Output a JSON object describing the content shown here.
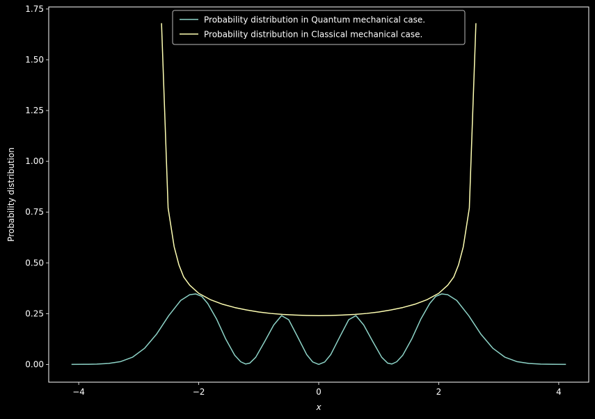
{
  "chart_data": {
    "type": "line",
    "xlabel": "x",
    "ylabel": "Probability distribution",
    "xlim": [
      -4.5,
      4.5
    ],
    "ylim": [
      -0.0875,
      1.76
    ],
    "xticks": [
      -4,
      -2,
      0,
      2,
      4
    ],
    "xtick_labels": [
      "−4",
      "−2",
      "0",
      "2",
      "4"
    ],
    "yticks": [
      0.0,
      0.25,
      0.5,
      0.75,
      1.0,
      1.25,
      1.5,
      1.75
    ],
    "ytick_labels": [
      "0.00",
      "0.25",
      "0.50",
      "0.75",
      "1.00",
      "1.25",
      "1.50",
      "1.75"
    ],
    "grid": false,
    "legend_position": "top-center",
    "series": [
      {
        "name": "Probability distribution in Quantum mechanical case.",
        "color": "#8dd3c7",
        "x": [
          -4.12,
          -3.9,
          -3.7,
          -3.5,
          -3.3,
          -3.1,
          -2.9,
          -2.7,
          -2.5,
          -2.3,
          -2.15,
          -2.05,
          -1.95,
          -1.85,
          -1.7,
          -1.55,
          -1.4,
          -1.3,
          -1.22,
          -1.15,
          -1.05,
          -0.9,
          -0.75,
          -0.62,
          -0.5,
          -0.35,
          -0.2,
          -0.1,
          0,
          0.1,
          0.2,
          0.35,
          0.5,
          0.62,
          0.75,
          0.9,
          1.05,
          1.15,
          1.22,
          1.3,
          1.4,
          1.55,
          1.7,
          1.85,
          1.95,
          2.05,
          2.15,
          2.3,
          2.5,
          2.7,
          2.9,
          3.1,
          3.3,
          3.5,
          3.7,
          3.9,
          4.12
        ],
        "y": [
          0.0001,
          0.0004,
          0.0015,
          0.0048,
          0.014,
          0.036,
          0.08,
          0.15,
          0.24,
          0.315,
          0.343,
          0.347,
          0.335,
          0.3,
          0.222,
          0.125,
          0.045,
          0.013,
          0.002,
          0.006,
          0.035,
          0.113,
          0.194,
          0.24,
          0.22,
          0.135,
          0.048,
          0.012,
          0.0,
          0.012,
          0.048,
          0.135,
          0.22,
          0.24,
          0.194,
          0.113,
          0.035,
          0.006,
          0.002,
          0.013,
          0.045,
          0.125,
          0.222,
          0.3,
          0.335,
          0.347,
          0.343,
          0.315,
          0.24,
          0.15,
          0.08,
          0.036,
          0.014,
          0.0048,
          0.0015,
          0.0004,
          0.0001
        ]
      },
      {
        "name": "Probability distribution in Classical mechanical case.",
        "color": "#ffffb3",
        "x": [
          -2.62,
          -2.51,
          -2.41,
          -2.33,
          -2.25,
          -2.15,
          -2.0,
          -1.8,
          -1.6,
          -1.4,
          -1.2,
          -1.0,
          -0.8,
          -0.6,
          -0.4,
          -0.2,
          0,
          0.2,
          0.4,
          0.6,
          0.8,
          1.0,
          1.2,
          1.4,
          1.6,
          1.8,
          2.0,
          2.15,
          2.25,
          2.33,
          2.41,
          2.51,
          2.62
        ],
        "y": [
          1.68,
          0.77,
          0.58,
          0.49,
          0.43,
          0.39,
          0.35,
          0.318,
          0.296,
          0.28,
          0.268,
          0.258,
          0.251,
          0.246,
          0.243,
          0.241,
          0.24,
          0.241,
          0.243,
          0.246,
          0.251,
          0.258,
          0.268,
          0.28,
          0.296,
          0.318,
          0.35,
          0.39,
          0.43,
          0.49,
          0.58,
          0.77,
          1.68
        ]
      }
    ]
  }
}
